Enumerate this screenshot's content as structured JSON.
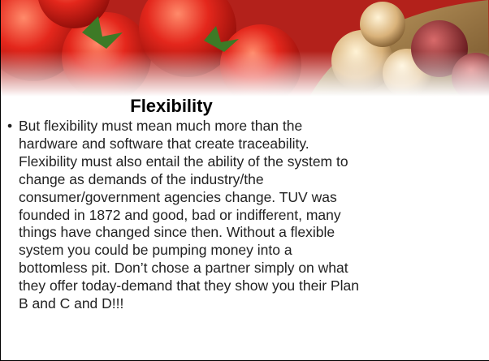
{
  "slide": {
    "title": "Flexibility",
    "bullet": {
      "lines": [
        "But flexibility must mean much more than the",
        "hardware and software that create traceability.",
        "Flexibility must also entail the ability of the system to",
        "change as demands of the industry/the",
        "consumer/government agencies change. TUV was",
        "founded in 1872 and good, bad or indifferent, many",
        "things have changed since then. Without a flexible",
        "system you could be pumping money into a",
        "bottomless pit. Don’t chose a partner simply on what",
        "they offer today-demand that they show you their Plan",
        "B and C and D!!!"
      ]
    }
  }
}
